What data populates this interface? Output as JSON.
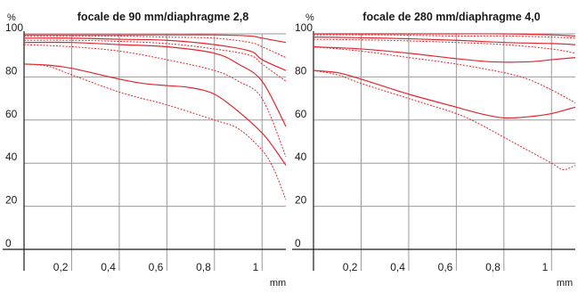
{
  "chart_data": [
    {
      "type": "line",
      "title": "focale de 90 mm/diaphragme 2,8",
      "ylabel": "%",
      "xlabel": "mm",
      "xlim": [
        0,
        1.1
      ],
      "ylim": [
        0,
        100
      ],
      "yticks": [
        0,
        20,
        40,
        60,
        80,
        100
      ],
      "xticks": [
        "0,2",
        "0,4",
        "0,6",
        "0,8",
        "1"
      ],
      "xtick_values": [
        0.2,
        0.4,
        0.6,
        0.8,
        1.0
      ],
      "ytick_labels": [
        "0",
        "20",
        "40",
        "60",
        "80",
        "100"
      ],
      "grid": true,
      "series": [
        {
          "style": "solid",
          "points": [
            [
              0,
              99.5
            ],
            [
              0.2,
              99.5
            ],
            [
              0.4,
              99.5
            ],
            [
              0.6,
              99.5
            ],
            [
              0.8,
              99.5
            ],
            [
              0.95,
              99
            ],
            [
              1.0,
              98
            ],
            [
              1.1,
              96
            ]
          ]
        },
        {
          "style": "dotted",
          "points": [
            [
              0,
              99
            ],
            [
              0.2,
              99
            ],
            [
              0.4,
              99
            ],
            [
              0.6,
              98.5
            ],
            [
              0.8,
              98
            ],
            [
              0.95,
              96
            ],
            [
              1.0,
              94
            ],
            [
              1.1,
              89
            ]
          ]
        },
        {
          "style": "solid",
          "points": [
            [
              0,
              98
            ],
            [
              0.2,
              98
            ],
            [
              0.4,
              97.5
            ],
            [
              0.6,
              97
            ],
            [
              0.8,
              95
            ],
            [
              0.95,
              92
            ],
            [
              1.0,
              88
            ],
            [
              1.1,
              83
            ]
          ]
        },
        {
          "style": "dotted",
          "points": [
            [
              0,
              97
            ],
            [
              0.2,
              97
            ],
            [
              0.4,
              96.5
            ],
            [
              0.6,
              95.5
            ],
            [
              0.8,
              93
            ],
            [
              0.95,
              90
            ],
            [
              1.0,
              86
            ],
            [
              1.1,
              78
            ]
          ]
        },
        {
          "style": "solid",
          "points": [
            [
              0,
              96
            ],
            [
              0.2,
              96
            ],
            [
              0.4,
              95
            ],
            [
              0.6,
              94
            ],
            [
              0.8,
              91
            ],
            [
              0.9,
              86
            ],
            [
              1.0,
              78
            ],
            [
              1.1,
              57
            ]
          ]
        },
        {
          "style": "dotted",
          "points": [
            [
              0,
              95
            ],
            [
              0.2,
              94
            ],
            [
              0.4,
              92
            ],
            [
              0.6,
              88
            ],
            [
              0.8,
              83
            ],
            [
              0.9,
              78
            ],
            [
              1.0,
              70
            ],
            [
              1.1,
              43
            ]
          ]
        },
        {
          "style": "solid",
          "points": [
            [
              0,
              86
            ],
            [
              0.1,
              85.5
            ],
            [
              0.2,
              84
            ],
            [
              0.4,
              79
            ],
            [
              0.5,
              77
            ],
            [
              0.6,
              76
            ],
            [
              0.7,
              75
            ],
            [
              0.8,
              72
            ],
            [
              0.9,
              64
            ],
            [
              1.0,
              54
            ],
            [
              1.05,
              47
            ],
            [
              1.1,
              39
            ]
          ]
        },
        {
          "style": "dotted",
          "points": [
            [
              0,
              86
            ],
            [
              0.1,
              85
            ],
            [
              0.2,
              81
            ],
            [
              0.4,
              73
            ],
            [
              0.6,
              67
            ],
            [
              0.8,
              60
            ],
            [
              0.9,
              56
            ],
            [
              1.0,
              46
            ],
            [
              1.05,
              37
            ],
            [
              1.1,
              23
            ]
          ]
        }
      ]
    },
    {
      "type": "line",
      "title": "focale de 280 mm/diaphragme 4,0",
      "ylabel": "%",
      "xlabel": "mm",
      "xlim": [
        0,
        1.1
      ],
      "ylim": [
        0,
        100
      ],
      "yticks": [
        0,
        20,
        40,
        60,
        80,
        100
      ],
      "xticks": [
        "0,2",
        "0,4",
        "0,6",
        "0,8",
        "1"
      ],
      "xtick_values": [
        0.2,
        0.4,
        0.6,
        0.8,
        1.0
      ],
      "ytick_labels": [
        "0",
        "20",
        "40",
        "60",
        "80",
        "100"
      ],
      "grid": true,
      "series": [
        {
          "style": "solid",
          "points": [
            [
              0,
              100
            ],
            [
              0.3,
              100
            ],
            [
              0.6,
              100
            ],
            [
              0.8,
              100
            ],
            [
              1.0,
              99.5
            ],
            [
              1.1,
              99
            ]
          ]
        },
        {
          "style": "dotted",
          "points": [
            [
              0,
              99.5
            ],
            [
              0.3,
              99.5
            ],
            [
              0.6,
              99
            ],
            [
              0.8,
              99
            ],
            [
              1.0,
              98.5
            ],
            [
              1.1,
              98
            ]
          ]
        },
        {
          "style": "solid",
          "points": [
            [
              0,
              98.5
            ],
            [
              0.3,
              98
            ],
            [
              0.6,
              97
            ],
            [
              0.8,
              96
            ],
            [
              1.0,
              95.5
            ],
            [
              1.1,
              95
            ]
          ]
        },
        {
          "style": "dotted",
          "points": [
            [
              0,
              97.5
            ],
            [
              0.3,
              97
            ],
            [
              0.6,
              96
            ],
            [
              0.8,
              95
            ],
            [
              1.0,
              93
            ],
            [
              1.1,
              91
            ]
          ]
        },
        {
          "style": "solid",
          "points": [
            [
              0,
              94
            ],
            [
              0.2,
              93
            ],
            [
              0.4,
              91
            ],
            [
              0.6,
              88.5
            ],
            [
              0.75,
              87
            ],
            [
              0.9,
              87
            ],
            [
              1.0,
              88
            ],
            [
              1.1,
              89
            ]
          ]
        },
        {
          "style": "dotted",
          "points": [
            [
              0,
              94
            ],
            [
              0.2,
              92
            ],
            [
              0.4,
              89
            ],
            [
              0.6,
              86
            ],
            [
              0.8,
              82
            ],
            [
              0.9,
              79
            ],
            [
              1.0,
              74
            ],
            [
              1.1,
              68
            ]
          ]
        },
        {
          "style": "solid",
          "points": [
            [
              0,
              83
            ],
            [
              0.1,
              82
            ],
            [
              0.2,
              79
            ],
            [
              0.4,
              72
            ],
            [
              0.6,
              66
            ],
            [
              0.7,
              63
            ],
            [
              0.8,
              61
            ],
            [
              0.9,
              61.5
            ],
            [
              1.0,
              63
            ],
            [
              1.1,
              66
            ]
          ]
        },
        {
          "style": "dotted",
          "points": [
            [
              0,
              83
            ],
            [
              0.1,
              81
            ],
            [
              0.2,
              77
            ],
            [
              0.4,
              70
            ],
            [
              0.6,
              63
            ],
            [
              0.7,
              58
            ],
            [
              0.8,
              52
            ],
            [
              0.9,
              46
            ],
            [
              1.0,
              40
            ],
            [
              1.05,
              37
            ],
            [
              1.1,
              39
            ]
          ]
        }
      ]
    }
  ],
  "colors": {
    "curve": "#e3262e",
    "grid": "#9a9a9a",
    "axis": "#1a1a1a"
  }
}
